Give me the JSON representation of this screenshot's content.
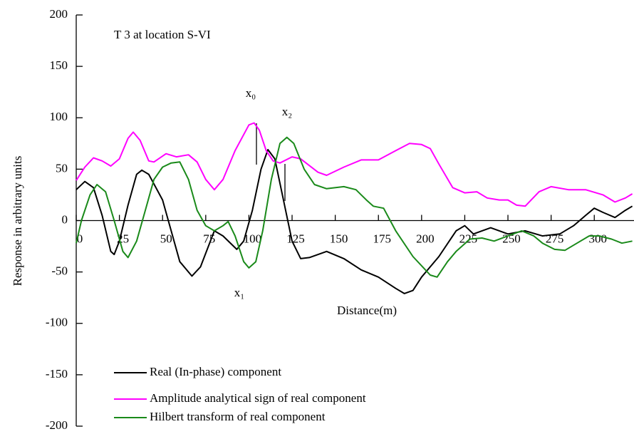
{
  "chart_data": {
    "type": "line",
    "title": "T 3 at location S-VI",
    "xlabel": "Distance(m)",
    "ylabel": "Response in arbitrary units",
    "annotations": [
      "x₀",
      "x₁",
      "x₂"
    ],
    "xlim": [
      0,
      323
    ],
    "ylim": [
      -200,
      200
    ],
    "xticks": [
      0,
      25,
      50,
      75,
      100,
      125,
      150,
      175,
      200,
      225,
      250,
      275,
      300
    ],
    "yticks": [
      200,
      150,
      100,
      50,
      0,
      -50,
      -100,
      -150,
      -200
    ],
    "legend": "lower left",
    "series": [
      {
        "name": "Real (In-phase) component",
        "color": "#000000",
        "x": [
          0,
          5,
          10,
          15,
          20,
          22,
          25,
          30,
          35,
          38,
          42,
          50,
          55,
          60,
          67,
          72,
          80,
          85,
          93,
          97,
          102,
          107,
          111,
          115,
          120,
          125,
          130,
          135,
          145,
          155,
          165,
          175,
          185,
          190,
          195,
          200,
          210,
          220,
          225,
          230,
          240,
          250,
          260,
          270,
          280,
          288,
          295,
          300,
          305,
          312,
          318,
          322
        ],
        "values": [
          30,
          38,
          32,
          5,
          -30,
          -33,
          -20,
          15,
          45,
          49,
          45,
          20,
          -10,
          -40,
          -54,
          -45,
          -10,
          -15,
          -28,
          -20,
          10,
          50,
          69,
          60,
          20,
          -20,
          -37,
          -36,
          -30,
          -37,
          -48,
          -55,
          -66,
          -71,
          -68,
          -55,
          -35,
          -10,
          -5,
          -13,
          -7,
          -13,
          -10,
          -15,
          -13,
          -5,
          5,
          12,
          8,
          3,
          10,
          14
        ]
      },
      {
        "name": "Amplitude analytical sign of real component",
        "color": "#ff00ff",
        "x": [
          0,
          5,
          10,
          15,
          20,
          25,
          30,
          33,
          37,
          42,
          45,
          52,
          58,
          65,
          70,
          75,
          80,
          85,
          92,
          100,
          103,
          106,
          110,
          114,
          118,
          125,
          130,
          140,
          145,
          155,
          165,
          175,
          185,
          193,
          200,
          205,
          210,
          218,
          225,
          232,
          238,
          245,
          250,
          255,
          260,
          268,
          275,
          285,
          295,
          305,
          312,
          318,
          322
        ],
        "values": [
          39,
          52,
          61,
          58,
          53,
          60,
          80,
          86,
          78,
          58,
          57,
          65,
          62,
          64,
          57,
          40,
          30,
          40,
          68,
          93,
          95,
          88,
          68,
          58,
          56,
          62,
          60,
          47,
          44,
          52,
          59,
          59,
          68,
          75,
          74,
          70,
          55,
          32,
          27,
          28,
          22,
          20,
          20,
          15,
          14,
          28,
          33,
          30,
          30,
          25,
          18,
          22,
          26
        ]
      },
      {
        "name": "Hilbert transform of real component",
        "color": "#1a8a1a",
        "x": [
          0,
          3,
          8,
          12,
          17,
          22,
          27,
          30,
          35,
          40,
          45,
          50,
          55,
          60,
          65,
          70,
          75,
          80,
          85,
          88,
          92,
          97,
          100,
          104,
          108,
          113,
          118,
          122,
          126,
          132,
          138,
          145,
          155,
          162,
          168,
          172,
          178,
          185,
          195,
          205,
          209,
          215,
          220,
          228,
          235,
          242,
          250,
          258,
          265,
          270,
          277,
          283,
          290,
          297,
          303,
          310,
          316,
          322
        ],
        "values": [
          -22,
          0,
          25,
          35,
          28,
          0,
          -30,
          -36,
          -20,
          10,
          40,
          52,
          56,
          57,
          40,
          10,
          -5,
          -10,
          -5,
          -1,
          -15,
          -40,
          -46,
          -40,
          -10,
          40,
          75,
          81,
          75,
          50,
          35,
          31,
          33,
          30,
          20,
          14,
          12,
          -10,
          -35,
          -53,
          -55,
          -40,
          -30,
          -18,
          -17,
          -20,
          -15,
          -10,
          -15,
          -22,
          -28,
          -29,
          -22,
          -15,
          -15,
          -18,
          -22,
          -20
        ]
      }
    ]
  }
}
